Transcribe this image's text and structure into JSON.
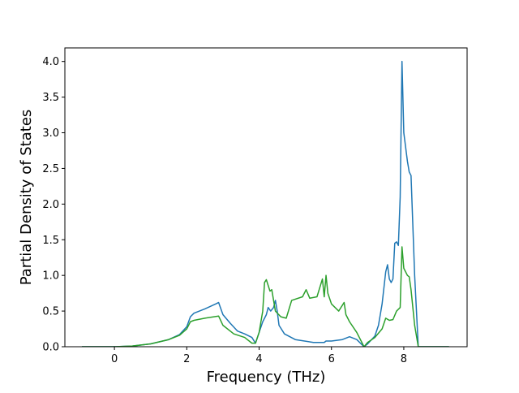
{
  "chart_data": {
    "type": "line",
    "xlabel": "Frequency (THz)",
    "ylabel": "Partial Density of States",
    "xlim": [
      -1.37,
      9.75
    ],
    "ylim": [
      0,
      4.19
    ],
    "xticks": [
      0,
      2,
      4,
      6,
      8
    ],
    "yticks": [
      {
        "value": 0,
        "label": "0.0"
      },
      0.5,
      {
        "value": 1,
        "label": "1.0"
      },
      1.5,
      {
        "value": 2,
        "label": "2.0"
      },
      2.5,
      {
        "value": 3,
        "label": "3.0"
      },
      3.5,
      {
        "value": 4,
        "label": "4.0"
      }
    ],
    "series": [
      {
        "color": "#1f77b4",
        "x": [
          -0.9,
          0,
          0.5,
          1,
          1.5,
          1.8,
          2.0,
          2.1,
          2.2,
          2.5,
          2.8,
          2.88,
          3.0,
          3.2,
          3.4,
          3.6,
          3.8,
          3.9,
          4.0,
          4.1,
          4.2,
          4.25,
          4.32,
          4.4,
          4.45,
          4.5,
          4.55,
          4.7,
          5.0,
          5.5,
          5.8,
          5.85,
          6.0,
          6.3,
          6.5,
          6.7,
          6.9,
          7.0,
          7.2,
          7.3,
          7.4,
          7.5,
          7.55,
          7.6,
          7.65,
          7.7,
          7.75,
          7.8,
          7.85,
          7.9,
          7.95,
          8.0,
          8.1,
          8.15,
          8.2,
          8.3,
          8.4,
          9.25
        ],
        "values": [
          0,
          0,
          0.01,
          0.04,
          0.1,
          0.17,
          0.28,
          0.42,
          0.47,
          0.53,
          0.6,
          0.62,
          0.45,
          0.33,
          0.22,
          0.18,
          0.13,
          0.05,
          0.2,
          0.35,
          0.45,
          0.55,
          0.5,
          0.55,
          0.65,
          0.5,
          0.3,
          0.18,
          0.1,
          0.06,
          0.06,
          0.08,
          0.08,
          0.1,
          0.14,
          0.1,
          0,
          0.04,
          0.15,
          0.3,
          0.6,
          1.05,
          1.15,
          0.95,
          0.9,
          0.95,
          1.45,
          1.47,
          1.42,
          2.1,
          4.0,
          3.0,
          2.6,
          2.45,
          2.4,
          1.0,
          0,
          0
        ]
      },
      {
        "color": "#2ca02c",
        "x": [
          -0.9,
          0,
          0.5,
          1,
          1.5,
          1.8,
          2.0,
          2.1,
          2.2,
          2.5,
          2.88,
          3.0,
          3.3,
          3.6,
          3.8,
          3.9,
          4.0,
          4.1,
          4.15,
          4.2,
          4.3,
          4.35,
          4.45,
          4.6,
          4.75,
          4.9,
          5.2,
          5.3,
          5.4,
          5.6,
          5.75,
          5.8,
          5.85,
          5.9,
          6.0,
          6.2,
          6.35,
          6.4,
          6.5,
          6.7,
          6.9,
          7.0,
          7.2,
          7.4,
          7.5,
          7.6,
          7.7,
          7.8,
          7.9,
          7.95,
          8.0,
          8.1,
          8.15,
          8.2,
          8.3,
          8.4,
          9.25
        ],
        "values": [
          0,
          0,
          0.01,
          0.04,
          0.1,
          0.16,
          0.25,
          0.35,
          0.37,
          0.4,
          0.43,
          0.3,
          0.18,
          0.13,
          0.05,
          0.05,
          0.2,
          0.5,
          0.9,
          0.94,
          0.78,
          0.8,
          0.5,
          0.42,
          0.4,
          0.65,
          0.7,
          0.8,
          0.68,
          0.7,
          0.95,
          0.7,
          1.0,
          0.75,
          0.6,
          0.5,
          0.62,
          0.45,
          0.35,
          0.2,
          0,
          0.06,
          0.13,
          0.25,
          0.4,
          0.37,
          0.38,
          0.5,
          0.55,
          1.4,
          1.1,
          1.0,
          0.98,
          0.8,
          0.3,
          0,
          0
        ]
      }
    ]
  }
}
